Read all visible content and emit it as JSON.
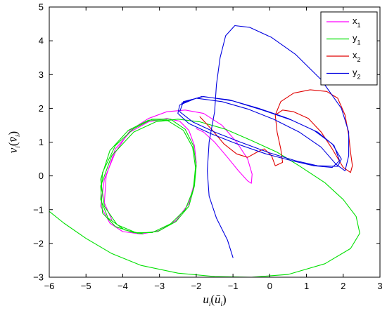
{
  "chart_data": {
    "type": "line",
    "title": "",
    "xlabel_main": "u",
    "xlabel_sub": "i",
    "xlabel_paren_main": "ū",
    "xlabel_paren_sub": "i",
    "ylabel_main": "v",
    "ylabel_sub": "i",
    "ylabel_paren_main": "v̄",
    "ylabel_paren_sub": "i",
    "xlim": [
      -6,
      3
    ],
    "ylim": [
      -3,
      5
    ],
    "xticks": [
      -6,
      -5,
      -4,
      -3,
      -2,
      -1,
      0,
      1,
      2,
      3
    ],
    "yticks": [
      -3,
      -2,
      -1,
      0,
      1,
      2,
      3,
      4,
      5
    ],
    "xtick_labels": [
      "−6",
      "−5",
      "−4",
      "−3",
      "−2",
      "−1",
      "0",
      "1",
      "2",
      "3"
    ],
    "ytick_labels": [
      "−3",
      "−2",
      "−1",
      "0",
      "1",
      "2",
      "3",
      "4",
      "5"
    ],
    "grid": false,
    "legend_position": "top-right",
    "series": [
      {
        "name_main": "x",
        "name_sub": "1",
        "color": "#ff00ff",
        "points": [
          [
            -2.0,
            1.4
          ],
          [
            -1.8,
            1.3
          ],
          [
            -1.5,
            1.0
          ],
          [
            -1.15,
            0.55
          ],
          [
            -0.85,
            0.15
          ],
          [
            -0.6,
            -0.15
          ],
          [
            -0.5,
            -0.22
          ],
          [
            -0.48,
            0.05
          ],
          [
            -0.6,
            0.5
          ],
          [
            -0.9,
            1.0
          ],
          [
            -1.3,
            1.5
          ],
          [
            -1.8,
            1.85
          ],
          [
            -2.3,
            1.95
          ],
          [
            -2.8,
            1.9
          ],
          [
            -3.3,
            1.7
          ],
          [
            -3.8,
            1.35
          ],
          [
            -4.2,
            0.7
          ],
          [
            -4.5,
            -0.1
          ],
          [
            -4.6,
            -0.9
          ],
          [
            -4.35,
            -1.4
          ],
          [
            -4.0,
            -1.65
          ],
          [
            -3.5,
            -1.72
          ],
          [
            -3.0,
            -1.62
          ],
          [
            -2.55,
            -1.32
          ],
          [
            -2.2,
            -0.82
          ],
          [
            -2.05,
            -0.2
          ],
          [
            -2.0,
            0.4
          ],
          [
            -2.05,
            0.9
          ],
          [
            -2.2,
            1.35
          ],
          [
            -2.45,
            1.62
          ],
          [
            -2.8,
            1.7
          ],
          [
            -3.3,
            1.6
          ],
          [
            -3.8,
            1.3
          ],
          [
            -4.2,
            0.8
          ],
          [
            -4.45,
            0.0
          ],
          [
            -4.5,
            -0.8
          ],
          [
            -4.3,
            -1.3
          ]
        ]
      },
      {
        "name_main": "y",
        "name_sub": "1",
        "color": "#00e000",
        "points": [
          [
            -6.0,
            -1.05
          ],
          [
            -5.6,
            -1.4
          ],
          [
            -5.0,
            -1.85
          ],
          [
            -4.3,
            -2.3
          ],
          [
            -3.5,
            -2.65
          ],
          [
            -2.5,
            -2.88
          ],
          [
            -1.5,
            -2.98
          ],
          [
            -0.5,
            -3.0
          ],
          [
            0.5,
            -2.92
          ],
          [
            1.5,
            -2.6
          ],
          [
            2.2,
            -2.15
          ],
          [
            2.45,
            -1.7
          ],
          [
            2.35,
            -1.2
          ],
          [
            2.0,
            -0.7
          ],
          [
            1.5,
            -0.2
          ],
          [
            0.8,
            0.3
          ],
          [
            0.2,
            0.7
          ],
          [
            -0.5,
            1.05
          ],
          [
            -1.2,
            1.38
          ],
          [
            -1.9,
            1.6
          ],
          [
            -2.5,
            1.68
          ],
          [
            -3.1,
            1.6
          ],
          [
            -3.7,
            1.3
          ],
          [
            -4.3,
            0.6
          ],
          [
            -4.6,
            -0.3
          ],
          [
            -4.55,
            -1.1
          ],
          [
            -4.2,
            -1.5
          ],
          [
            -3.7,
            -1.68
          ],
          [
            -3.2,
            -1.68
          ],
          [
            -2.7,
            -1.42
          ],
          [
            -2.3,
            -1.0
          ],
          [
            -2.08,
            -0.4
          ],
          [
            -2.02,
            0.25
          ],
          [
            -2.1,
            0.85
          ],
          [
            -2.35,
            1.35
          ],
          [
            -2.8,
            1.65
          ],
          [
            -3.3,
            1.65
          ],
          [
            -3.85,
            1.35
          ],
          [
            -4.35,
            0.75
          ],
          [
            -4.6,
            -0.1
          ],
          [
            -4.5,
            -0.9
          ],
          [
            -4.15,
            -1.45
          ],
          [
            -3.6,
            -1.7
          ],
          [
            -3.05,
            -1.65
          ],
          [
            -2.55,
            -1.35
          ],
          [
            -2.2,
            -0.9
          ],
          [
            -2.05,
            -0.3
          ],
          [
            -2.0,
            0.3
          ],
          [
            -2.08,
            0.9
          ],
          [
            -2.3,
            1.38
          ],
          [
            -2.7,
            1.68
          ],
          [
            -3.2,
            1.68
          ],
          [
            -3.7,
            1.4
          ],
          [
            -4.2,
            0.9
          ],
          [
            -4.55,
            0.1
          ],
          [
            -4.6,
            -0.7
          ],
          [
            -4.4,
            -1.25
          ],
          [
            -3.95,
            -1.6
          ],
          [
            -3.45,
            -1.72
          ]
        ]
      },
      {
        "name_main": "x",
        "name_sub": "2",
        "color": "#e00000",
        "points": [
          [
            -1.9,
            1.75
          ],
          [
            -1.6,
            1.4
          ],
          [
            -1.25,
            0.95
          ],
          [
            -0.9,
            0.65
          ],
          [
            -0.6,
            0.55
          ],
          [
            -0.35,
            0.7
          ],
          [
            -0.15,
            0.8
          ],
          [
            0.05,
            0.6
          ],
          [
            0.15,
            0.3
          ],
          [
            0.35,
            0.4
          ],
          [
            0.3,
            0.8
          ],
          [
            0.2,
            1.3
          ],
          [
            0.15,
            1.8
          ],
          [
            0.3,
            2.2
          ],
          [
            0.65,
            2.45
          ],
          [
            1.1,
            2.55
          ],
          [
            1.55,
            2.5
          ],
          [
            1.85,
            2.3
          ],
          [
            2.05,
            1.8
          ],
          [
            2.15,
            1.2
          ],
          [
            2.2,
            0.7
          ],
          [
            2.25,
            0.3
          ],
          [
            2.2,
            0.1
          ],
          [
            2.0,
            0.25
          ],
          [
            1.7,
            0.8
          ],
          [
            1.4,
            1.3
          ],
          [
            1.05,
            1.7
          ],
          [
            0.65,
            1.9
          ],
          [
            0.35,
            1.95
          ],
          [
            0.15,
            1.8
          ]
        ]
      },
      {
        "name_main": "y",
        "name_sub": "2",
        "color": "#0000e0",
        "points": [
          [
            -1.0,
            -2.42
          ],
          [
            -1.15,
            -1.9
          ],
          [
            -1.45,
            -1.25
          ],
          [
            -1.65,
            -0.6
          ],
          [
            -1.7,
            0.15
          ],
          [
            -1.65,
            1.0
          ],
          [
            -1.5,
            1.9
          ],
          [
            -1.45,
            2.7
          ],
          [
            -1.35,
            3.5
          ],
          [
            -1.2,
            4.15
          ],
          [
            -0.95,
            4.45
          ],
          [
            -0.55,
            4.4
          ],
          [
            0.05,
            4.1
          ],
          [
            0.7,
            3.6
          ],
          [
            1.4,
            2.85
          ],
          [
            1.95,
            2.0
          ],
          [
            2.15,
            1.3
          ],
          [
            2.15,
            0.6
          ],
          [
            2.05,
            0.15
          ],
          [
            1.8,
            0.35
          ],
          [
            1.4,
            0.85
          ],
          [
            0.8,
            1.3
          ],
          [
            0.1,
            1.68
          ],
          [
            -0.6,
            1.98
          ],
          [
            -1.3,
            2.2
          ],
          [
            -2.0,
            2.3
          ],
          [
            -2.45,
            2.1
          ],
          [
            -2.5,
            1.85
          ],
          [
            -2.2,
            1.55
          ],
          [
            -1.6,
            1.25
          ],
          [
            -0.9,
            0.95
          ],
          [
            -0.1,
            0.65
          ],
          [
            0.6,
            0.45
          ],
          [
            1.2,
            0.3
          ],
          [
            1.7,
            0.25
          ],
          [
            1.9,
            0.45
          ],
          [
            1.75,
            0.9
          ],
          [
            1.3,
            1.3
          ],
          [
            0.6,
            1.65
          ],
          [
            -0.2,
            1.95
          ],
          [
            -1.0,
            2.22
          ],
          [
            -1.8,
            2.35
          ],
          [
            -2.35,
            2.2
          ],
          [
            -2.45,
            1.9
          ],
          [
            -2.1,
            1.6
          ],
          [
            -1.5,
            1.3
          ],
          [
            -0.8,
            1.0
          ],
          [
            0.0,
            0.68
          ],
          [
            0.7,
            0.45
          ],
          [
            1.3,
            0.3
          ],
          [
            1.85,
            0.28
          ],
          [
            1.95,
            0.5
          ],
          [
            1.7,
            0.95
          ],
          [
            1.2,
            1.35
          ],
          [
            0.5,
            1.7
          ],
          [
            -0.3,
            2.0
          ],
          [
            -1.1,
            2.25
          ],
          [
            -1.85,
            2.35
          ],
          [
            -2.4,
            2.15
          ]
        ]
      }
    ]
  }
}
